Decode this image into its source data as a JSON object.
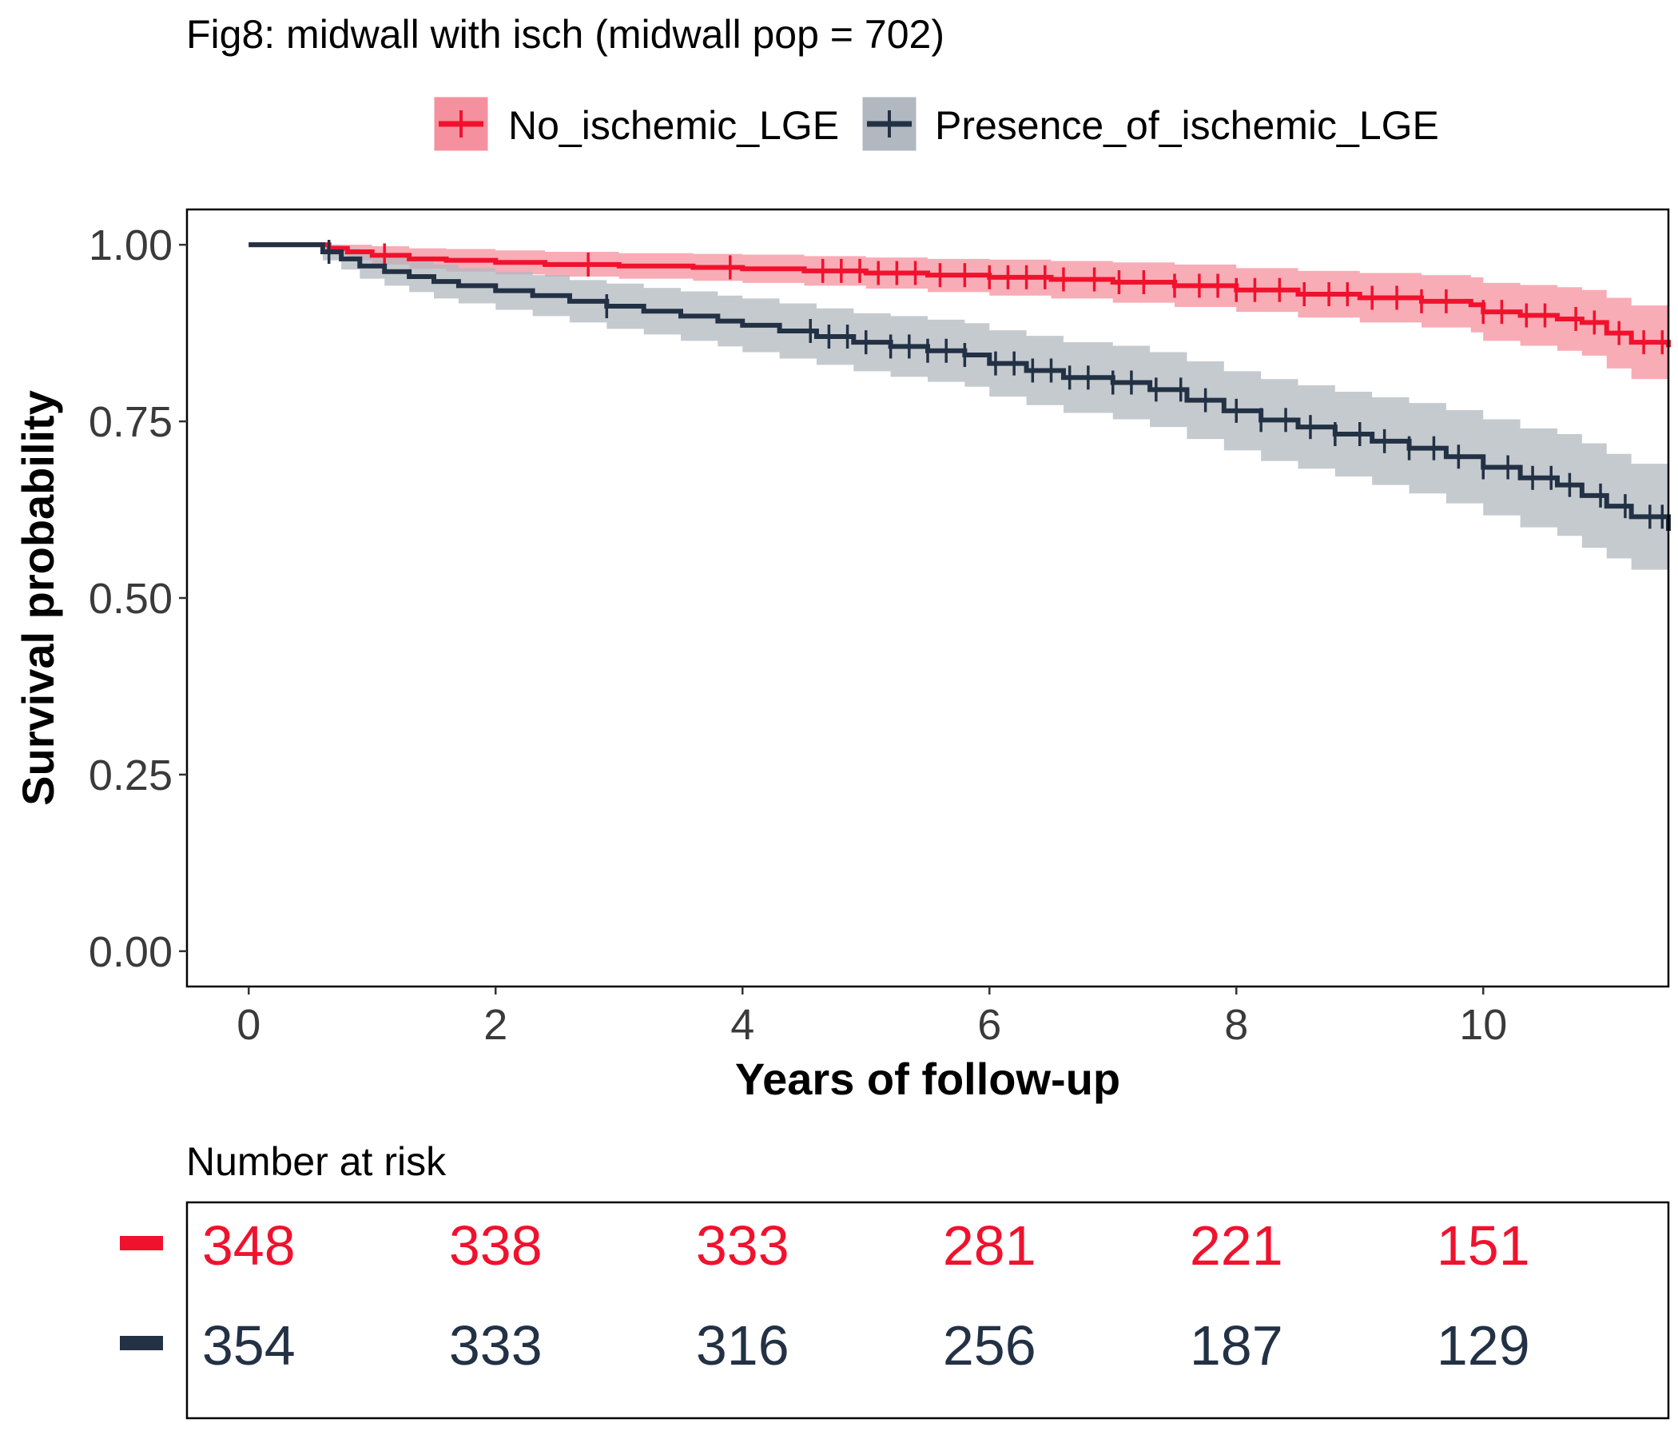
{
  "chart_data": {
    "type": "line",
    "title": "Fig8: midwall with isch (midwall pop = 702)",
    "xlabel": "Years of follow-up",
    "ylabel": "Survival probability",
    "xlim": [
      -0.5,
      11.5
    ],
    "ylim": [
      -0.05,
      1.05
    ],
    "x_ticks": [
      0,
      2,
      4,
      6,
      8,
      10
    ],
    "x_tick_labels": [
      "0",
      "2",
      "4",
      "6",
      "8",
      "10"
    ],
    "y_ticks": [
      0,
      0.25,
      0.5,
      0.75,
      1.0
    ],
    "y_tick_labels": [
      "0.00",
      "0.25",
      "0.50",
      "0.75",
      "1.00"
    ],
    "grid": false,
    "legend_position": "top",
    "series": [
      {
        "name": "No_ischemic_LGE",
        "color": "#f0122d",
        "band_color": "#f5909e",
        "x": [
          0,
          0.55,
          0.65,
          0.8,
          1.0,
          1.3,
          1.6,
          2.0,
          2.4,
          3.0,
          3.6,
          4.0,
          4.5,
          5.0,
          5.5,
          6.0,
          6.5,
          7.0,
          7.5,
          8.0,
          8.5,
          9.0,
          9.5,
          9.9,
          10.0,
          10.3,
          10.6,
          10.8,
          11.0,
          11.2,
          11.5
        ],
        "y": [
          1.0,
          1.0,
          0.995,
          0.99,
          0.985,
          0.98,
          0.978,
          0.975,
          0.972,
          0.97,
          0.968,
          0.966,
          0.963,
          0.96,
          0.957,
          0.954,
          0.951,
          0.947,
          0.942,
          0.936,
          0.93,
          0.925,
          0.92,
          0.915,
          0.905,
          0.9,
          0.895,
          0.89,
          0.875,
          0.862,
          0.855
        ],
        "lower": [
          1.0,
          1.0,
          0.985,
          0.978,
          0.972,
          0.966,
          0.962,
          0.958,
          0.955,
          0.952,
          0.949,
          0.946,
          0.942,
          0.938,
          0.933,
          0.928,
          0.924,
          0.918,
          0.912,
          0.905,
          0.897,
          0.89,
          0.883,
          0.876,
          0.864,
          0.857,
          0.85,
          0.843,
          0.825,
          0.81,
          0.8
        ],
        "upper": [
          1.0,
          1.0,
          1.0,
          1.0,
          0.998,
          0.995,
          0.994,
          0.992,
          0.99,
          0.988,
          0.987,
          0.986,
          0.984,
          0.982,
          0.98,
          0.979,
          0.977,
          0.975,
          0.972,
          0.967,
          0.963,
          0.96,
          0.957,
          0.954,
          0.946,
          0.943,
          0.94,
          0.936,
          0.925,
          0.914,
          0.905
        ],
        "censor_x": [
          1.1,
          2.75,
          3.9,
          4.65,
          4.8,
          4.95,
          5.1,
          5.25,
          5.4,
          5.6,
          5.8,
          6.0,
          6.15,
          6.3,
          6.45,
          6.6,
          6.85,
          7.05,
          7.25,
          7.5,
          7.7,
          7.85,
          8.0,
          8.15,
          8.35,
          8.55,
          8.75,
          8.9,
          9.1,
          9.3,
          9.5,
          9.7,
          10.0,
          10.15,
          10.35,
          10.5,
          10.75,
          10.9,
          11.1,
          11.3,
          11.45
        ]
      },
      {
        "name": "Presence_of_ischemic_LGE",
        "color": "#233145",
        "band_color": "#b1b8bf",
        "x": [
          0,
          0.5,
          0.6,
          0.75,
          0.9,
          1.1,
          1.3,
          1.5,
          1.7,
          2.0,
          2.3,
          2.6,
          2.9,
          3.2,
          3.5,
          3.8,
          4.0,
          4.3,
          4.6,
          4.9,
          5.2,
          5.5,
          5.8,
          6.0,
          6.3,
          6.6,
          7.0,
          7.3,
          7.6,
          7.9,
          8.2,
          8.5,
          8.8,
          9.1,
          9.4,
          9.7,
          10.0,
          10.3,
          10.6,
          10.8,
          11.0,
          11.2,
          11.5
        ],
        "y": [
          1.0,
          1.0,
          0.99,
          0.98,
          0.97,
          0.962,
          0.955,
          0.948,
          0.942,
          0.935,
          0.928,
          0.92,
          0.913,
          0.906,
          0.899,
          0.892,
          0.886,
          0.878,
          0.87,
          0.862,
          0.856,
          0.85,
          0.844,
          0.832,
          0.822,
          0.812,
          0.805,
          0.795,
          0.78,
          0.765,
          0.752,
          0.742,
          0.732,
          0.722,
          0.712,
          0.7,
          0.685,
          0.67,
          0.66,
          0.645,
          0.63,
          0.615,
          0.595
        ],
        "lower": [
          1.0,
          1.0,
          0.978,
          0.965,
          0.952,
          0.942,
          0.933,
          0.924,
          0.917,
          0.908,
          0.899,
          0.89,
          0.881,
          0.873,
          0.864,
          0.856,
          0.848,
          0.839,
          0.83,
          0.821,
          0.813,
          0.806,
          0.799,
          0.785,
          0.773,
          0.762,
          0.753,
          0.742,
          0.725,
          0.709,
          0.694,
          0.683,
          0.672,
          0.66,
          0.648,
          0.634,
          0.617,
          0.6,
          0.588,
          0.571,
          0.556,
          0.54,
          0.52
        ],
        "upper": [
          1.0,
          1.0,
          1.0,
          0.995,
          0.988,
          0.982,
          0.977,
          0.972,
          0.967,
          0.962,
          0.957,
          0.95,
          0.945,
          0.939,
          0.934,
          0.928,
          0.924,
          0.917,
          0.91,
          0.903,
          0.899,
          0.894,
          0.889,
          0.879,
          0.871,
          0.862,
          0.857,
          0.848,
          0.835,
          0.821,
          0.81,
          0.801,
          0.792,
          0.784,
          0.776,
          0.766,
          0.753,
          0.74,
          0.732,
          0.719,
          0.704,
          0.69,
          0.672
        ],
        "censor_x": [
          0.65,
          2.9,
          4.55,
          4.7,
          4.85,
          5.0,
          5.2,
          5.35,
          5.5,
          5.65,
          5.8,
          6.05,
          6.2,
          6.35,
          6.5,
          6.65,
          6.8,
          7.0,
          7.15,
          7.35,
          7.55,
          7.75,
          8.0,
          8.2,
          8.4,
          8.6,
          8.8,
          9.0,
          9.2,
          9.4,
          9.6,
          9.8,
          10.0,
          10.2,
          10.4,
          10.55,
          10.7,
          10.95,
          11.15,
          11.35,
          11.45
        ]
      }
    ],
    "risk_table": {
      "title": "Number at risk",
      "times": [
        0,
        2,
        4,
        6,
        8,
        10
      ],
      "rows": [
        {
          "name": "No_ischemic_LGE",
          "color": "#f0122d",
          "values": [
            "348",
            "338",
            "333",
            "281",
            "221",
            "151"
          ]
        },
        {
          "name": "Presence_of_ischemic_LGE",
          "color": "#233145",
          "values": [
            "354",
            "333",
            "316",
            "256",
            "187",
            "129"
          ]
        }
      ]
    }
  }
}
